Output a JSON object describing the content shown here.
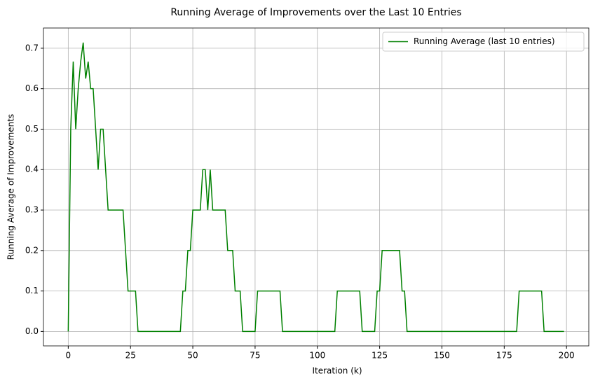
{
  "chart_data": {
    "type": "line",
    "title": "Running Average of Improvements over the Last 10 Entries",
    "xlabel": "Iteration (k)",
    "ylabel": "Running Average of Improvements",
    "x": [
      0,
      1,
      2,
      3,
      4,
      5,
      6,
      7,
      8,
      9,
      10,
      11,
      12,
      13,
      14,
      15,
      16,
      17,
      18,
      19,
      20,
      21,
      22,
      23,
      24,
      25,
      26,
      27,
      28,
      29,
      30,
      31,
      32,
      33,
      34,
      35,
      36,
      37,
      38,
      39,
      40,
      41,
      42,
      43,
      44,
      45,
      46,
      47,
      48,
      49,
      50,
      51,
      52,
      53,
      54,
      55,
      56,
      57,
      58,
      59,
      60,
      61,
      62,
      63,
      64,
      65,
      66,
      67,
      68,
      69,
      70,
      71,
      72,
      73,
      74,
      75,
      76,
      77,
      78,
      79,
      80,
      81,
      82,
      83,
      84,
      85,
      86,
      87,
      88,
      89,
      90,
      91,
      92,
      93,
      94,
      95,
      96,
      97,
      98,
      99,
      100,
      101,
      102,
      103,
      104,
      105,
      106,
      107,
      108,
      109,
      110,
      111,
      112,
      113,
      114,
      115,
      116,
      117,
      118,
      119,
      120,
      121,
      122,
      123,
      124,
      125,
      126,
      127,
      128,
      129,
      130,
      131,
      132,
      133,
      134,
      135,
      136,
      137,
      138,
      139,
      140,
      141,
      142,
      143,
      144,
      145,
      146,
      147,
      148,
      149,
      150,
      151,
      152,
      153,
      154,
      155,
      156,
      157,
      158,
      159,
      160,
      161,
      162,
      163,
      164,
      165,
      166,
      167,
      168,
      169,
      170,
      171,
      172,
      173,
      174,
      175,
      176,
      177,
      178,
      179,
      180,
      181,
      182,
      183,
      184,
      185,
      186,
      187,
      188,
      189,
      190,
      191,
      192,
      193,
      194,
      195,
      196,
      197,
      198,
      199
    ],
    "series": [
      {
        "name": "Running Average (last 10 entries)",
        "color": "#008000",
        "values": [
          0,
          0.5,
          0.667,
          0.5,
          0.6,
          0.667,
          0.714,
          0.625,
          0.667,
          0.6,
          0.6,
          0.5,
          0.4,
          0.5,
          0.5,
          0.4,
          0.3,
          0.3,
          0.3,
          0.3,
          0.3,
          0.3,
          0.3,
          0.2,
          0.1,
          0.1,
          0.1,
          0.1,
          0,
          0,
          0,
          0,
          0,
          0,
          0,
          0,
          0,
          0,
          0,
          0,
          0,
          0,
          0,
          0,
          0,
          0,
          0.1,
          0.1,
          0.2,
          0.2,
          0.3,
          0.3,
          0.3,
          0.3,
          0.4,
          0.4,
          0.3,
          0.4,
          0.3,
          0.3,
          0.3,
          0.3,
          0.3,
          0.3,
          0.2,
          0.2,
          0.2,
          0.1,
          0.1,
          0.1,
          0,
          0,
          0,
          0,
          0,
          0,
          0.1,
          0.1,
          0.1,
          0.1,
          0.1,
          0.1,
          0.1,
          0.1,
          0.1,
          0.1,
          0,
          0,
          0,
          0,
          0,
          0,
          0,
          0,
          0,
          0,
          0,
          0,
          0,
          0,
          0,
          0,
          0,
          0,
          0,
          0,
          0,
          0,
          0.1,
          0.1,
          0.1,
          0.1,
          0.1,
          0.1,
          0.1,
          0.1,
          0.1,
          0.1,
          0,
          0,
          0,
          0,
          0,
          0,
          0.1,
          0.1,
          0.2,
          0.2,
          0.2,
          0.2,
          0.2,
          0.2,
          0.2,
          0.2,
          0.1,
          0.1,
          0,
          0,
          0,
          0,
          0,
          0,
          0,
          0,
          0,
          0,
          0,
          0,
          0,
          0,
          0,
          0,
          0,
          0,
          0,
          0,
          0,
          0,
          0,
          0,
          0,
          0,
          0,
          0,
          0,
          0,
          0,
          0,
          0,
          0,
          0,
          0,
          0,
          0,
          0,
          0,
          0,
          0,
          0,
          0,
          0,
          0.1,
          0.1,
          0.1,
          0.1,
          0.1,
          0.1,
          0.1,
          0.1,
          0.1,
          0.1,
          0,
          0,
          0,
          0,
          0,
          0,
          0,
          0,
          0
        ]
      }
    ],
    "xlim": [
      -9.95,
      208.95
    ],
    "ylim": [
      -0.0357,
      0.75
    ],
    "xticks": [
      0,
      25,
      50,
      75,
      100,
      125,
      150,
      175,
      200
    ],
    "yticks": [
      {
        "value": 0,
        "label": "0.0"
      },
      0.1,
      0.2,
      0.3,
      0.4,
      0.5,
      0.6,
      0.7
    ],
    "grid": true,
    "legend": "upper right"
  }
}
